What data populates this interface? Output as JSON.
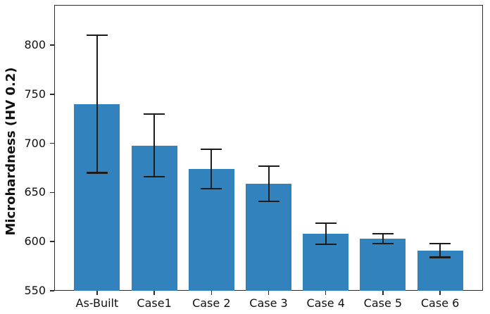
{
  "figure": {
    "background": "#ffffff",
    "frame_color": "#2b2b2b",
    "text_color": "#111111"
  },
  "chart_data": {
    "type": "bar",
    "title": "",
    "xlabel": "",
    "ylabel": "Microhardness (HV 0.2)",
    "categories": [
      "As-Built",
      "Case1",
      "Case 2",
      "Case 3",
      "Case 4",
      "Case 5",
      "Case 6"
    ],
    "values": [
      740,
      698,
      674,
      659,
      608,
      603,
      591
    ],
    "error_bars": [
      70,
      32,
      20,
      18,
      11,
      5,
      7
    ],
    "yticks": [
      550,
      600,
      650,
      700,
      750,
      800
    ],
    "ylim": [
      550,
      841
    ],
    "grid": false,
    "legend_position": "none",
    "bar_color": "#3282bd",
    "error_color": "#1c1c1c"
  }
}
